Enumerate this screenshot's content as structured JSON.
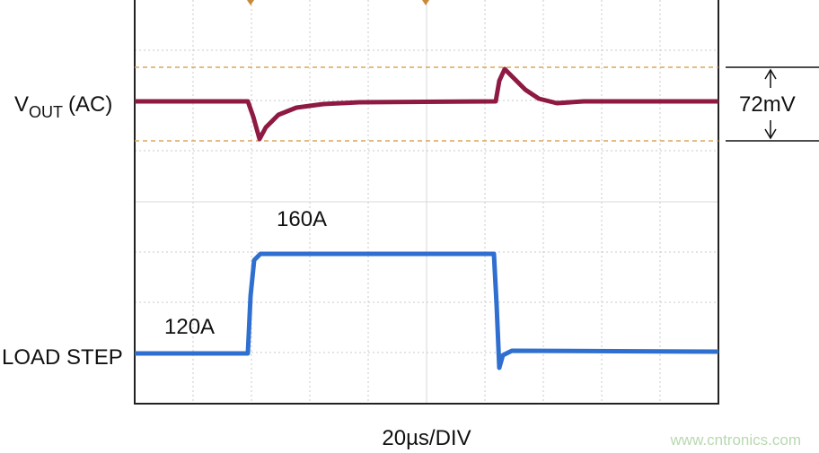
{
  "vout_label": {
    "main": "V",
    "sub": "OUT",
    "suffix": "(AC)"
  },
  "load_label": "LOAD STEP",
  "high_current": "160A",
  "low_current": "120A",
  "ripple": "72mV",
  "timebase": "20µs/DIV",
  "watermark": "www.cntronics.com"
}
